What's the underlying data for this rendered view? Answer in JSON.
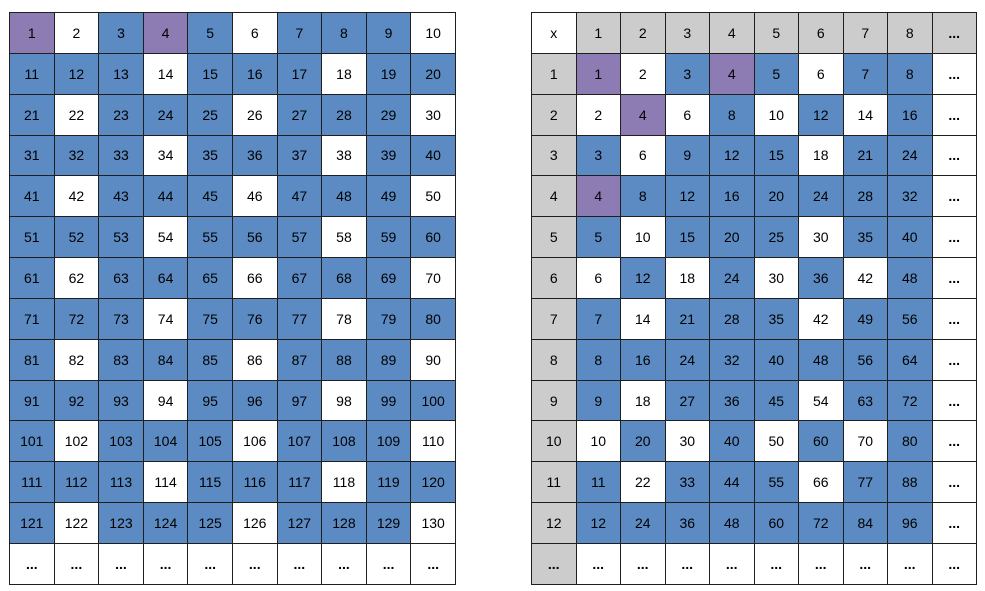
{
  "hundred_grid": {
    "rows": [
      [
        "1",
        "2",
        "3",
        "4",
        "5",
        "6",
        "7",
        "8",
        "9",
        "10"
      ],
      [
        "11",
        "12",
        "13",
        "14",
        "15",
        "16",
        "17",
        "18",
        "19",
        "20"
      ],
      [
        "21",
        "22",
        "23",
        "24",
        "25",
        "26",
        "27",
        "28",
        "29",
        "30"
      ],
      [
        "31",
        "32",
        "33",
        "34",
        "35",
        "36",
        "37",
        "38",
        "39",
        "40"
      ],
      [
        "41",
        "42",
        "43",
        "44",
        "45",
        "46",
        "47",
        "48",
        "49",
        "50"
      ],
      [
        "51",
        "52",
        "53",
        "54",
        "55",
        "56",
        "57",
        "58",
        "59",
        "60"
      ],
      [
        "61",
        "62",
        "63",
        "64",
        "65",
        "66",
        "67",
        "68",
        "69",
        "70"
      ],
      [
        "71",
        "72",
        "73",
        "74",
        "75",
        "76",
        "77",
        "78",
        "79",
        "80"
      ],
      [
        "81",
        "82",
        "83",
        "84",
        "85",
        "86",
        "87",
        "88",
        "89",
        "90"
      ],
      [
        "91",
        "92",
        "93",
        "94",
        "95",
        "96",
        "97",
        "98",
        "99",
        "100"
      ],
      [
        "101",
        "102",
        "103",
        "104",
        "105",
        "106",
        "107",
        "108",
        "109",
        "110"
      ],
      [
        "111",
        "112",
        "113",
        "114",
        "115",
        "116",
        "117",
        "118",
        "119",
        "120"
      ],
      [
        "121",
        "122",
        "123",
        "124",
        "125",
        "126",
        "127",
        "128",
        "129",
        "130"
      ],
      [
        "...",
        "...",
        "...",
        "...",
        "...",
        "...",
        "...",
        "...",
        "...",
        "..."
      ]
    ],
    "fills": [
      "PWBPBWBBBW",
      "BBBWBBBWBB",
      "BWBBBWBBBW",
      "BBBWBBBWBB",
      "BWBBBWBBBW",
      "BBBWBBBWBB",
      "BWBBBWBBBW",
      "BBBWBBBWBB",
      "BWBBBWBBBW",
      "BBBWBBBWBB",
      "BWBBBWBBBW",
      "BBBWBBBWBB",
      "BWBBBWBBBW",
      "WWWWWWWWWW"
    ]
  },
  "times_table": {
    "rows": [
      [
        "x",
        "1",
        "2",
        "3",
        "4",
        "5",
        "6",
        "7",
        "8",
        "..."
      ],
      [
        "1",
        "1",
        "2",
        "3",
        "4",
        "5",
        "6",
        "7",
        "8",
        "..."
      ],
      [
        "2",
        "2",
        "4",
        "6",
        "8",
        "10",
        "12",
        "14",
        "16",
        "..."
      ],
      [
        "3",
        "3",
        "6",
        "9",
        "12",
        "15",
        "18",
        "21",
        "24",
        "..."
      ],
      [
        "4",
        "4",
        "8",
        "12",
        "16",
        "20",
        "24",
        "28",
        "32",
        "..."
      ],
      [
        "5",
        "5",
        "10",
        "15",
        "20",
        "25",
        "30",
        "35",
        "40",
        "..."
      ],
      [
        "6",
        "6",
        "12",
        "18",
        "24",
        "30",
        "36",
        "42",
        "48",
        "..."
      ],
      [
        "7",
        "7",
        "14",
        "21",
        "28",
        "35",
        "42",
        "49",
        "56",
        "..."
      ],
      [
        "8",
        "8",
        "16",
        "24",
        "32",
        "40",
        "48",
        "56",
        "64",
        "..."
      ],
      [
        "9",
        "9",
        "18",
        "27",
        "36",
        "45",
        "54",
        "63",
        "72",
        "..."
      ],
      [
        "10",
        "10",
        "20",
        "30",
        "40",
        "50",
        "60",
        "70",
        "80",
        "..."
      ],
      [
        "11",
        "11",
        "22",
        "33",
        "44",
        "55",
        "66",
        "77",
        "88",
        "..."
      ],
      [
        "12",
        "12",
        "24",
        "36",
        "48",
        "60",
        "72",
        "84",
        "96",
        "..."
      ],
      [
        "...",
        "...",
        "...",
        "...",
        "...",
        "...",
        "...",
        "...",
        "...",
        "..."
      ]
    ],
    "fills": [
      "WGGGGGGGGG",
      "GPWBPBWBBW",
      "GWPWBWBWBW",
      "GBWBBBWBBW",
      "GPBBBBBBBW",
      "GBWBBBWBBW",
      "GWBWBWBWBW",
      "GBWBBBWBBW",
      "GBBBBBBBBW",
      "GBWBBBWBBW",
      "GWBWBWBWBW",
      "GBWBBBWBBW",
      "GBBBBBBBBW",
      "GWWWWWWWWW"
    ]
  },
  "colors": {
    "B": "#5b8bc2",
    "P": "#8d7bb4",
    "G": "#cccccc",
    "W": "#ffffff"
  }
}
